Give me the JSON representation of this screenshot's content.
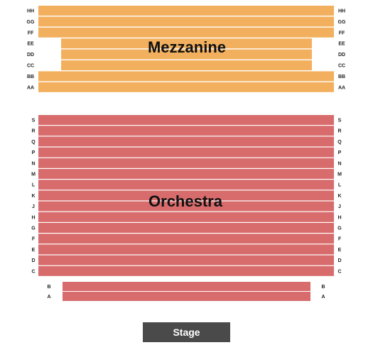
{
  "colors": {
    "mezzanine": "#F2B05E",
    "orchestra": "#D86C6C",
    "stage": "#4A4A4A",
    "row_divider": "#ffffff"
  },
  "sections": {
    "mezzanine": {
      "name": "Mezzanine",
      "rows": [
        "HH",
        "GG",
        "FF",
        "EE",
        "DD",
        "CC",
        "BB",
        "AA"
      ]
    },
    "orchestra": {
      "name": "Orchestra",
      "rows": [
        "S",
        "R",
        "Q",
        "P",
        "N",
        "M",
        "L",
        "K",
        "J",
        "H",
        "G",
        "F",
        "E",
        "D",
        "C"
      ]
    },
    "orchestra_front": {
      "rows": [
        "B",
        "A"
      ]
    },
    "stage": {
      "name": "Stage"
    }
  }
}
